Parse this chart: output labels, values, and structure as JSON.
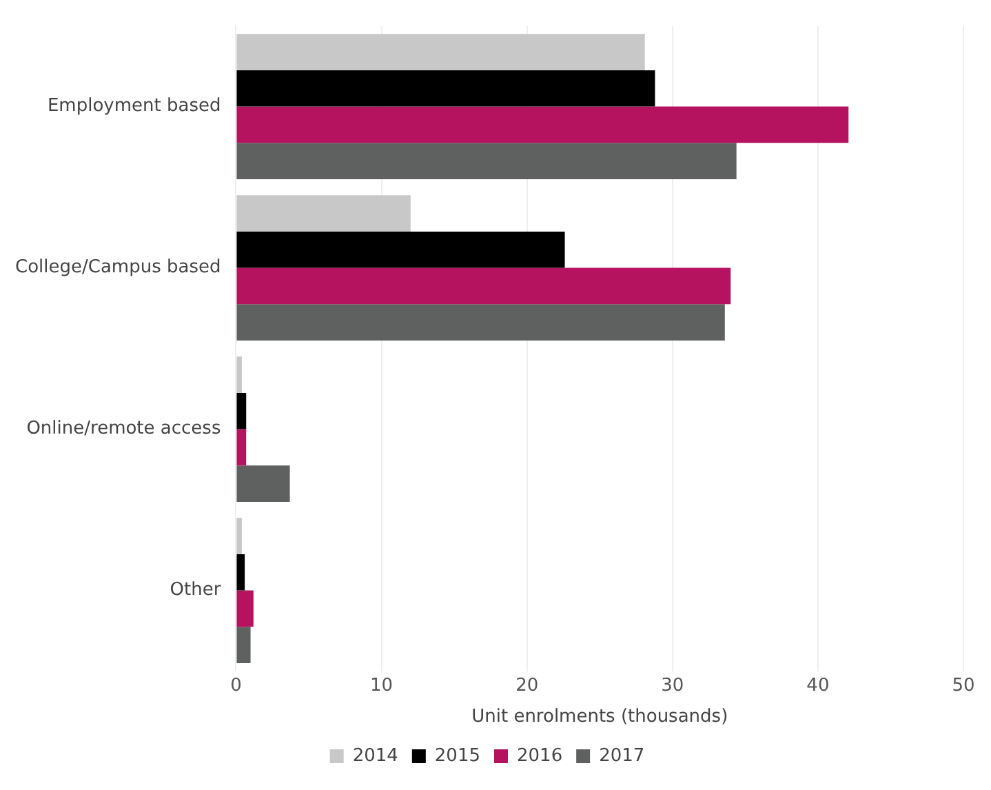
{
  "chart_data": {
    "type": "bar",
    "orientation": "horizontal",
    "categories": [
      "Employment based",
      "College/Campus based",
      "Online/remote access",
      "Other"
    ],
    "series": [
      {
        "name": "2014",
        "color": "#c8c8c8",
        "values": [
          28.1,
          12.0,
          0.4,
          0.4
        ]
      },
      {
        "name": "2015",
        "color": "#000000",
        "values": [
          28.8,
          22.6,
          0.7,
          0.6
        ]
      },
      {
        "name": "2016",
        "color": "#b5135f",
        "values": [
          42.1,
          34.0,
          0.7,
          1.2
        ]
      },
      {
        "name": "2017",
        "color": "#5f6060",
        "values": [
          34.4,
          33.6,
          3.7,
          1.0
        ]
      }
    ],
    "xlabel": "Unit enrolments (thousands)",
    "xlim": [
      0,
      50
    ],
    "xticks": [
      0,
      10,
      20,
      30,
      40,
      50
    ],
    "grid": "x",
    "legend": "bottom"
  }
}
